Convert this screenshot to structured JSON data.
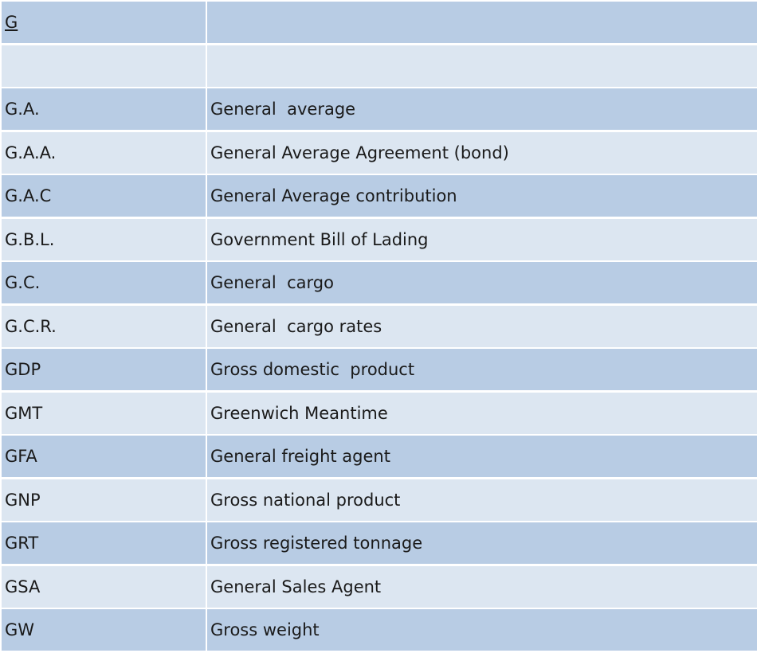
{
  "header": {
    "letter": "G",
    "meaning": ""
  },
  "rows": [
    {
      "abbr": "",
      "meaning": ""
    },
    {
      "abbr": "G.A.",
      "meaning": "General  average"
    },
    {
      "abbr": "G.A.A.",
      "meaning": "General Average Agreement (bond)"
    },
    {
      "abbr": "G.A.C",
      "meaning": "General Average contribution"
    },
    {
      "abbr": "G.B.L.",
      "meaning": "Government Bill of Lading"
    },
    {
      "abbr": "G.C.",
      "meaning": "General  cargo"
    },
    {
      "abbr": "G.C.R.",
      "meaning": "General  cargo rates"
    },
    {
      "abbr": "GDP",
      "meaning": "Gross domestic  product"
    },
    {
      "abbr": "GMT",
      "meaning": "Greenwich Meantime"
    },
    {
      "abbr": "GFA",
      "meaning": "General freight agent"
    },
    {
      "abbr": "GNP",
      "meaning": "Gross national product"
    },
    {
      "abbr": "GRT",
      "meaning": "Gross registered tonnage"
    },
    {
      "abbr": "GSA",
      "meaning": "General Sales Agent"
    },
    {
      "abbr": "GW",
      "meaning": "Gross weight"
    }
  ]
}
